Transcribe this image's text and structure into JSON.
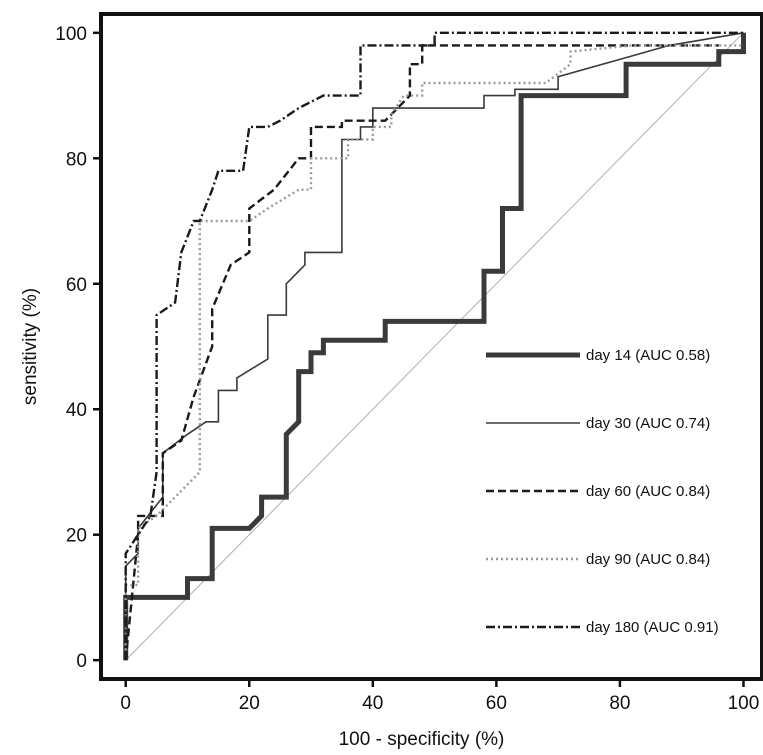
{
  "chart_data": {
    "type": "line",
    "title": "",
    "xlabel": "100 - specificity (%)",
    "ylabel": "sensitivity (%)",
    "xlim": [
      -4,
      103
    ],
    "ylim": [
      -3,
      103
    ],
    "xticks": [
      0,
      20,
      40,
      60,
      80,
      100
    ],
    "yticks": [
      0,
      20,
      40,
      60,
      80,
      100
    ],
    "grid": false,
    "legend_position": "right",
    "reference_line": {
      "x": [
        0,
        100
      ],
      "y": [
        0,
        100
      ],
      "color": "#b0b0b0"
    },
    "series": [
      {
        "name": "day 14 (AUC 0.58)",
        "color": "#3a3a3a",
        "dash": "solid",
        "weight": "heavy",
        "x": [
          0,
          0,
          10,
          10,
          14,
          14,
          20,
          22,
          22,
          26,
          26,
          28,
          28,
          30,
          30,
          32,
          32,
          42,
          42,
          58,
          58,
          61,
          61,
          64,
          64,
          81,
          81,
          96,
          96,
          100,
          100
        ],
        "y": [
          0,
          10,
          10,
          13,
          13,
          21,
          21,
          23,
          26,
          26,
          36,
          38,
          46,
          46,
          49,
          49,
          51,
          51,
          54,
          54,
          62,
          62,
          72,
          72,
          90,
          90,
          95,
          95,
          97,
          97,
          100
        ]
      },
      {
        "name": "day 30 (AUC 0.74)",
        "color": "#3a3a3a",
        "dash": "solid",
        "weight": "thin",
        "x": [
          0,
          0,
          2,
          2,
          6,
          6,
          10,
          13,
          13,
          15,
          15,
          18,
          18,
          23,
          23,
          26,
          26,
          29,
          29,
          35,
          35,
          38,
          38,
          40,
          40,
          58,
          58,
          63,
          63,
          70,
          70,
          88,
          100
        ],
        "y": [
          0,
          15,
          17,
          21,
          26,
          33,
          36,
          38,
          38,
          38,
          43,
          43,
          45,
          48,
          55,
          55,
          60,
          63,
          65,
          65,
          83,
          83,
          85,
          85,
          88,
          88,
          90,
          90,
          91,
          91,
          93,
          98,
          100
        ]
      },
      {
        "name": "day 60 (AUC 0.84)",
        "color": "#1a1a1a",
        "dash": "dashed",
        "weight": "medium",
        "x": [
          0,
          2,
          2,
          6,
          6,
          9,
          11,
          14,
          14,
          17,
          20,
          20,
          24,
          28,
          30,
          30,
          35,
          35,
          42,
          46,
          46,
          48,
          48,
          96
        ],
        "y": [
          0,
          20,
          23,
          23,
          33,
          35,
          42,
          50,
          56,
          63,
          65,
          72,
          75,
          80,
          80,
          85,
          85,
          86,
          86,
          90,
          95,
          95,
          98,
          98
        ]
      },
      {
        "name": "day 90 (AUC 0.84)",
        "color": "#9a9a9a",
        "dash": "dotted",
        "weight": "medium",
        "x": [
          0,
          0,
          2,
          2,
          5,
          8,
          10,
          12,
          12,
          18,
          20,
          23,
          28,
          30,
          30,
          35,
          36,
          36,
          40,
          40,
          43,
          43,
          45,
          48,
          48,
          68,
          72,
          72,
          82,
          100
        ],
        "y": [
          0,
          12,
          12,
          21,
          23,
          26,
          28,
          30,
          70,
          70,
          70,
          72,
          75,
          75,
          80,
          80,
          80,
          83,
          83,
          85,
          85,
          87,
          90,
          90,
          92,
          92,
          95,
          97,
          98,
          98
        ]
      },
      {
        "name": "day 180 (AUC 0.91)",
        "color": "#1a1a1a",
        "dash": "dashdot",
        "weight": "medium",
        "x": [
          0,
          0,
          2,
          4,
          5,
          5,
          8,
          9,
          11,
          12,
          14,
          15,
          19,
          19,
          20,
          23,
          25,
          28,
          32,
          35,
          38,
          38,
          41,
          50,
          50,
          100
        ],
        "y": [
          0,
          17,
          20,
          23,
          30,
          55,
          57,
          65,
          70,
          70,
          75,
          78,
          78,
          78,
          85,
          85,
          86,
          88,
          90,
          90,
          90,
          98,
          98,
          98,
          100,
          100
        ]
      }
    ]
  }
}
